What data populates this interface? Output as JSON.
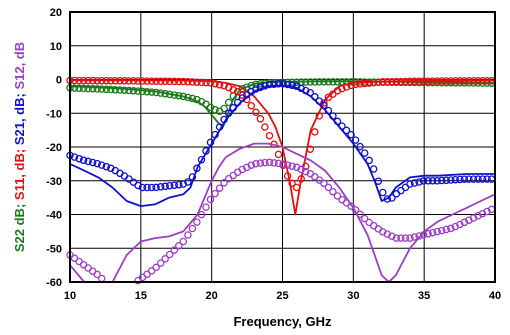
{
  "chart_data": {
    "type": "line",
    "title": "",
    "xlabel": "Frequency, GHz",
    "ylabel_parts": [
      {
        "text": "S22 dB;",
        "color": "#1a7a1a"
      },
      {
        "text": "S11, dB;",
        "color": "#e01010"
      },
      {
        "text": "S21, dB;",
        "color": "#1010cc"
      },
      {
        "text": "S12, dB",
        "color": "#9b3fc4"
      }
    ],
    "xlim": [
      10,
      40
    ],
    "ylim": [
      -60,
      20
    ],
    "xticks": [
      10,
      15,
      20,
      25,
      30,
      35,
      40
    ],
    "yticks": [
      20,
      10,
      0,
      -10,
      -20,
      -30,
      -40,
      -50,
      -60
    ],
    "series": [
      {
        "color": "#1a7a1a",
        "style": "line",
        "x": [
          10,
          12,
          14,
          16,
          18,
          19,
          19.5,
          20,
          20.5,
          20.8,
          21,
          21.5,
          22,
          23,
          24,
          26,
          28,
          30,
          32,
          35,
          38,
          40
        ],
        "y": [
          -2,
          -2.3,
          -2.8,
          -3.5,
          -5,
          -6.5,
          -8,
          -10.5,
          -13,
          -14,
          -12,
          -6,
          -3,
          -1.3,
          -0.8,
          -0.6,
          -0.5,
          -0.5,
          -0.6,
          -0.8,
          -0.9,
          -1
        ]
      },
      {
        "color": "#1a7a1a",
        "style": "markers",
        "x": [
          10,
          12,
          14,
          16,
          18,
          19,
          19.5,
          20,
          20.5,
          20.8,
          21,
          21.5,
          22,
          23,
          24,
          26,
          28,
          30,
          32,
          35,
          38,
          40
        ],
        "y": [
          -2.5,
          -2.8,
          -3.2,
          -3.8,
          -5,
          -6,
          -7,
          -8.5,
          -9.5,
          -9,
          -8,
          -5,
          -3,
          -1.5,
          -1,
          -0.8,
          -0.7,
          -0.7,
          -0.8,
          -0.9,
          -1,
          -1.1
        ]
      },
      {
        "color": "#e01010",
        "style": "line",
        "x": [
          10,
          14,
          18,
          20,
          21,
          22,
          23,
          24,
          24.5,
          25,
          25.5,
          25.9,
          26.3,
          27,
          28,
          29,
          30,
          32,
          35,
          38,
          40
        ],
        "y": [
          -0.2,
          -0.2,
          -0.3,
          -0.5,
          -1,
          -2,
          -5,
          -10,
          -14,
          -20,
          -30,
          -40,
          -30,
          -15,
          -6,
          -2,
          -1,
          -0.6,
          -0.4,
          -0.3,
          -0.3
        ]
      },
      {
        "color": "#e01010",
        "style": "markers",
        "x": [
          10,
          14,
          18,
          20,
          21,
          22,
          22.5,
          23,
          23.5,
          24,
          24.5,
          25,
          25.5,
          26,
          26.5,
          27,
          27.5,
          28,
          29,
          30,
          32,
          35,
          38,
          40
        ],
        "y": [
          -0.3,
          -0.4,
          -0.6,
          -1,
          -2,
          -4,
          -6,
          -9,
          -12,
          -16,
          -20,
          -25,
          -30,
          -32,
          -28,
          -20,
          -12,
          -6,
          -3,
          -1.5,
          -0.7,
          -0.5,
          -0.4,
          -0.4
        ]
      },
      {
        "color": "#1010cc",
        "style": "line",
        "x": [
          10,
          11,
          12,
          13,
          14,
          15,
          16,
          17,
          18,
          18.5,
          19,
          20,
          21,
          22,
          23,
          24,
          25,
          26,
          27,
          28,
          29,
          30,
          31,
          31.5,
          32,
          32.5,
          33,
          34,
          35,
          36,
          38,
          40
        ],
        "y": [
          -25,
          -27,
          -29,
          -32,
          -36,
          -37.5,
          -37,
          -35,
          -34,
          -32,
          -26,
          -19,
          -12,
          -7,
          -3.5,
          -2,
          -1.7,
          -2.5,
          -5,
          -9,
          -14,
          -19,
          -25,
          -30,
          -36,
          -35,
          -32,
          -29,
          -28.5,
          -28.5,
          -28,
          -28
        ]
      },
      {
        "color": "#1010cc",
        "style": "markers",
        "x": [
          10,
          11,
          12,
          13,
          14,
          15,
          16,
          17,
          18,
          18.5,
          19,
          20,
          21,
          22,
          23,
          24,
          25,
          26,
          27,
          28,
          29,
          30,
          31,
          31.5,
          32,
          32.5,
          33,
          34,
          35,
          36,
          38,
          40
        ],
        "y": [
          -22.5,
          -24,
          -25,
          -26.5,
          -29,
          -32,
          -32,
          -31.5,
          -31,
          -30,
          -26,
          -18,
          -11,
          -6,
          -3,
          -1.5,
          -1.2,
          -2,
          -4,
          -8,
          -13,
          -17,
          -23,
          -27,
          -33,
          -36,
          -34,
          -31,
          -30,
          -30,
          -29.5,
          -29.5
        ]
      },
      {
        "color": "#9b3fc4",
        "style": "line",
        "x": [
          10,
          11,
          12,
          13,
          14,
          15,
          16,
          17,
          18,
          19,
          20,
          20.5,
          21,
          22,
          23,
          24,
          25,
          26,
          27,
          28,
          29,
          30,
          30.5,
          31,
          31.5,
          32,
          32.5,
          33,
          34,
          35,
          36,
          37,
          38,
          39,
          40
        ],
        "y": [
          -55,
          -60,
          -60,
          -60,
          -52,
          -48,
          -47,
          -46.5,
          -45,
          -40,
          -30,
          -26,
          -23,
          -20.5,
          -19,
          -19,
          -20,
          -22,
          -24,
          -27,
          -32,
          -38,
          -42,
          -46,
          -52,
          -58,
          -60,
          -58,
          -50,
          -45,
          -42,
          -40,
          -38,
          -36,
          -34
        ]
      },
      {
        "color": "#9b3fc4",
        "style": "markers",
        "x": [
          10,
          11,
          12,
          13,
          14,
          15,
          16,
          17,
          18,
          19,
          20,
          21,
          22,
          23,
          24,
          25,
          26,
          27,
          28,
          29,
          30,
          31,
          32,
          33,
          34,
          35,
          36,
          37,
          38,
          39,
          40
        ],
        "y": [
          -52,
          -55,
          -58,
          -62,
          -62,
          -59,
          -56,
          -52,
          -48,
          -42,
          -35,
          -30,
          -27,
          -25,
          -24.5,
          -25,
          -26,
          -28,
          -31,
          -35,
          -38,
          -42,
          -45,
          -47,
          -47,
          -46,
          -45,
          -44,
          -42,
          -40,
          -38
        ]
      }
    ]
  }
}
